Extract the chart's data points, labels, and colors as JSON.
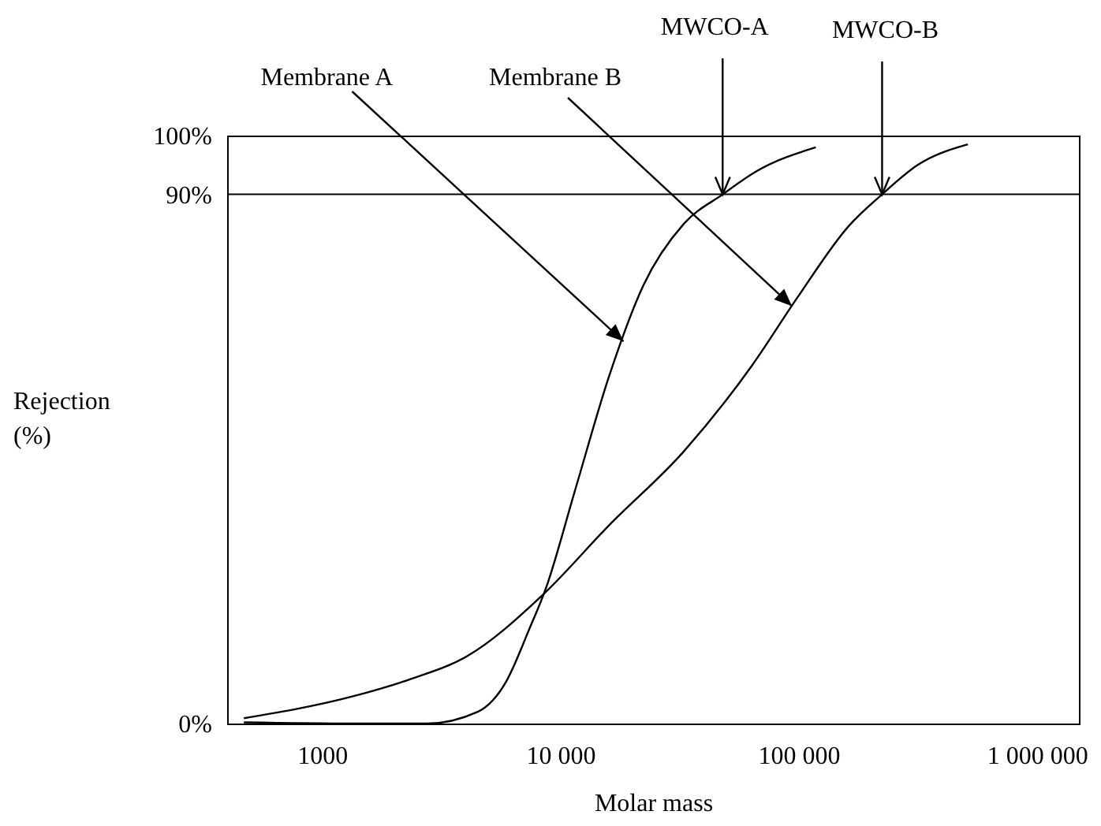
{
  "chart_data": {
    "type": "line",
    "xlabel": "Molar mass",
    "ylabel": "Rejection (%)",
    "log": "x",
    "xlim": [
      400,
      1500000
    ],
    "xticks": [
      1000,
      {
        "value": 10000,
        "label": "10 000"
      },
      {
        "value": 100000,
        "label": "100 000"
      },
      {
        "value": 1000000,
        "label": "1 000 000"
      }
    ],
    "ylim": [
      0,
      100
    ],
    "yticks": [
      {
        "value": 0,
        "label": "0%"
      },
      {
        "value": 90,
        "label": "90%"
      },
      {
        "value": 100,
        "label": "100%"
      }
    ],
    "series": [
      {
        "color": "#000000",
        "x": [
          470,
          1340,
          2750,
          4500,
          5900,
          7400,
          8700,
          11500,
          16000,
          22300,
          33000,
          48000,
          67000,
          118000
        ],
        "values": [
          0.2,
          0,
          0,
          2,
          7,
          16,
          23,
          39.5,
          59,
          74.5,
          85,
          90,
          94,
          98
        ]
      },
      {
        "color": "#000000",
        "x": [
          470,
          1340,
          2330,
          4040,
          8500,
          16000,
          33000,
          64000,
          99000,
          163000,
          224000,
          316000,
          513000
        ],
        "values": [
          0.9,
          4.6,
          7.5,
          11.4,
          22,
          33.7,
          46.3,
          61,
          72.5,
          84.7,
          90,
          95,
          98.5
        ]
      }
    ],
    "ref_lines": [
      {
        "axis": "y",
        "value": 90,
        "color": "#000000"
      }
    ],
    "annotations": [
      {
        "text": "Membrane A",
        "x": 18400,
        "y": 65
      },
      {
        "text": "Membrane B",
        "x": 93700,
        "y": 71
      },
      {
        "text": "MWCO-A",
        "x": 48000,
        "y": 90
      },
      {
        "text": "MWCO-B",
        "x": 224000,
        "y": 90
      }
    ]
  }
}
